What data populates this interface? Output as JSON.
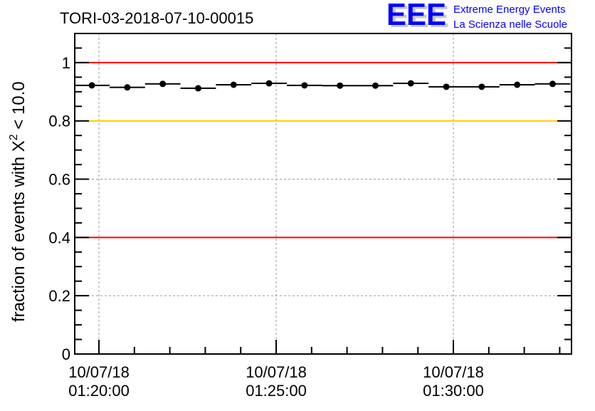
{
  "logo": {
    "letters": "EEE",
    "line1": "Extreme Energy Events",
    "line2": "La Scienza nelle Scuole",
    "color": "#0000ff"
  },
  "chart_data": {
    "type": "scatter",
    "title": "TORI-03-2018-07-10-00015",
    "xlabel": "",
    "ylabel_prefix": "fraction of events with ",
    "ylabel_chi": "X",
    "ylabel_sup": "2",
    "ylabel_suffix": " < 10.0",
    "x_start": "01:19:19",
    "x_end": "01:33:20",
    "ylim": [
      0,
      1.1
    ],
    "yticks": [
      0,
      0.2,
      0.4,
      0.6,
      0.8,
      1
    ],
    "ytick_labels": [
      "0",
      "0.2",
      "0.4",
      "0.6",
      "0.8",
      "1"
    ],
    "xticks": [
      {
        "time": "01:20:00",
        "date": "10/07/18",
        "label": "01:20:00"
      },
      {
        "time": "01:25:00",
        "date": "10/07/18",
        "label": "01:25:00"
      },
      {
        "time": "01:30:00",
        "date": "10/07/18",
        "label": "01:30:00"
      }
    ],
    "grid": true,
    "bin_width_s": 60,
    "x": [
      "01:19:48",
      "01:20:48",
      "01:21:48",
      "01:22:48",
      "01:23:48",
      "01:24:48",
      "01:25:48",
      "01:26:48",
      "01:27:48",
      "01:28:48",
      "01:29:48",
      "01:30:48",
      "01:31:48",
      "01:32:48"
    ],
    "values": [
      0.922,
      0.915,
      0.927,
      0.912,
      0.924,
      0.929,
      0.922,
      0.921,
      0.921,
      0.929,
      0.917,
      0.917,
      0.924,
      0.927
    ],
    "reference_lines": [
      {
        "y": 1.0,
        "color": "#ff0000"
      },
      {
        "y": 0.8,
        "color": "#ffcc00"
      },
      {
        "y": 0.4,
        "color": "#ff0000"
      }
    ]
  }
}
